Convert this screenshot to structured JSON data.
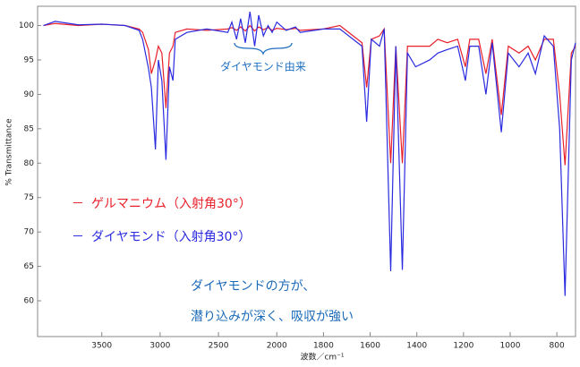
{
  "chart_data": {
    "type": "line",
    "x_label": "波数／cm⁻¹",
    "y_label": "% Transmittance",
    "x": [
      4000,
      3900,
      3700,
      3500,
      3300,
      3180,
      3150,
      3100,
      3075,
      3040,
      3015,
      2985,
      2950,
      2920,
      2890,
      2870,
      2770,
      2600,
      2420,
      2385,
      2345,
      2310,
      2270,
      2230,
      2190,
      2155,
      2115,
      2075,
      2040,
      2000,
      1960,
      1920,
      1900,
      1800,
      1730,
      1635,
      1615,
      1595,
      1560,
      1540,
      1512,
      1490,
      1462,
      1440,
      1405,
      1345,
      1310,
      1270,
      1225,
      1192,
      1173,
      1135,
      1104,
      1077,
      1038,
      1008,
      962,
      923,
      892,
      854,
      815,
      788,
      765,
      738,
      720
    ],
    "series": [
      {
        "name": "ゲルマニウム（入射角30°）",
        "color": "#e8202a",
        "values": [
          100,
          100.3,
          100,
          100.2,
          100,
          99.5,
          99,
          96.5,
          93,
          95,
          97,
          96,
          88,
          96,
          97,
          99,
          99.5,
          99.3,
          99.5,
          99.7,
          99.3,
          99.8,
          99.2,
          100,
          99.2,
          99.8,
          99.4,
          99.7,
          99.3,
          99.6,
          99.4,
          99.6,
          99.3,
          99.5,
          100,
          97.5,
          91,
          98,
          98.5,
          99.5,
          80,
          97,
          80,
          97,
          97,
          97,
          98,
          97.5,
          98,
          94,
          98,
          98,
          93,
          98,
          87,
          97,
          96,
          97,
          95,
          98,
          98,
          90,
          79.7,
          96,
          97
        ]
      },
      {
        "name": "ダイヤモンド（入射角30°）",
        "color": "#2a2ae0",
        "values": [
          100,
          100.6,
          100.1,
          100.2,
          100,
          99.3,
          98,
          93.8,
          91,
          82,
          95,
          92,
          80.5,
          94,
          92,
          98,
          99,
          99.5,
          99,
          100.5,
          98,
          101,
          97.5,
          102,
          97,
          101.5,
          98.5,
          100,
          99,
          100.5,
          99.3,
          99.8,
          99,
          99.5,
          99.5,
          97,
          86,
          98,
          97,
          99.5,
          64.3,
          97,
          64.5,
          96,
          94,
          95,
          96,
          96.5,
          97,
          92,
          97,
          97,
          90,
          97.5,
          84.5,
          96,
          94,
          96,
          93,
          98.5,
          97,
          85,
          60.7,
          95,
          97.5
        ]
      }
    ],
    "xlim": [
      4050,
      720
    ],
    "xticks": [
      3500,
      3000,
      2500,
      2000,
      1800,
      1600,
      1400,
      1200,
      1000,
      800
    ],
    "ylim": [
      54.8,
      102.8
    ],
    "yticks": [
      60,
      65,
      70,
      75,
      80,
      85,
      90,
      95,
      100
    ],
    "annotations": [
      "ダイヤモンド由来",
      "ダイヤモンドの方が、",
      "潜り込みが深く、吸収が強い"
    ]
  }
}
